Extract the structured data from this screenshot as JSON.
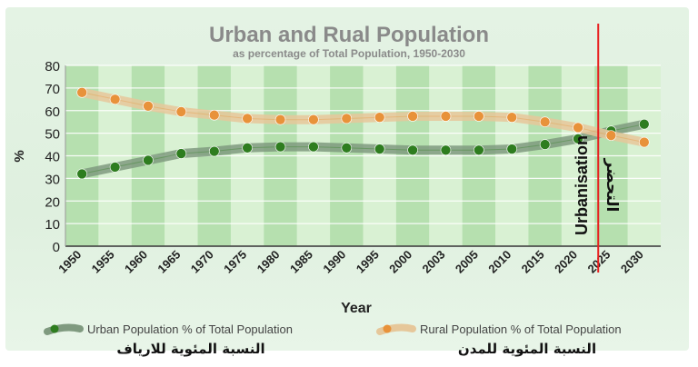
{
  "chart_data": {
    "type": "line",
    "title": "Urban and Rual Population",
    "subtitle": "as percentage of Total Population, 1950-2030",
    "xlabel": "Year",
    "ylabel": "%",
    "ylim": [
      0,
      80
    ],
    "yticks": [
      "0",
      "10",
      "20",
      "30",
      "40",
      "50",
      "60",
      "70",
      "80"
    ],
    "categories": [
      "1950",
      "1955",
      "1960",
      "1965",
      "1970",
      "1975",
      "1980",
      "1985",
      "1990",
      "1995",
      "2000",
      "2003",
      "2005",
      "2010",
      "2015",
      "2020",
      "2025",
      "2030"
    ],
    "series": [
      {
        "name": "Urban Population % of Total Population",
        "color": "#2e7d1f",
        "band_color": "#7f9a7f",
        "values": [
          32,
          35,
          38,
          41,
          42,
          43.5,
          44,
          44,
          43.5,
          43,
          42.5,
          42.5,
          42.5,
          43,
          45,
          47.5,
          51,
          54
        ]
      },
      {
        "name": "Rural Population % of Total Population",
        "color": "#e8923a",
        "band_color": "#e6c79a",
        "values": [
          68,
          65,
          62,
          59.5,
          58,
          56.5,
          56,
          56,
          56.5,
          57,
          57.5,
          57.5,
          57.5,
          57,
          55,
          52.5,
          49,
          46
        ]
      }
    ],
    "legend_position": "bottom",
    "annotation": {
      "marker_between": [
        "2020",
        "2025"
      ],
      "color": "#e82020",
      "label": "Urbanisation",
      "label_ar": "التحضر"
    }
  },
  "captions": {
    "left_ar": "النسبة المئوية للارياف",
    "right_ar": "النسبة المئوية للمدن"
  }
}
